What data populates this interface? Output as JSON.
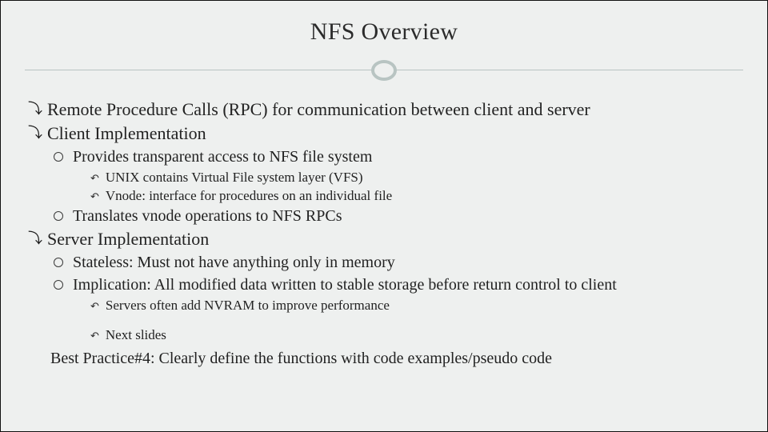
{
  "title": "NFS Overview",
  "bullets": {
    "l1_a": "Remote Procedure Calls (RPC) for communication between client and server",
    "l1_b": "Client Implementation",
    "l2_b1": "Provides transparent access to NFS file system",
    "l3_b1a": "UNIX contains Virtual File system layer (VFS)",
    "l3_b1b": "Vnode: interface for procedures on an individual file",
    "l2_b2": "Translates vnode operations to NFS RPCs",
    "l1_c": "Server Implementation",
    "l2_c1": "Stateless: Must not have anything only in memory",
    "l2_c2": "Implication: All modified data written to stable storage before return control to client",
    "l3_c2a": "Servers often add NVRAM to improve performance",
    "l3_c2b": "Next slides"
  },
  "footnote": "Best Practice#4: Clearly define the functions with code examples/pseudo code",
  "glyphs": {
    "lvl1_bullet": "⤵",
    "lvl3_bullet": "↶"
  },
  "style": {
    "bg": "#eef0ef",
    "accent": "#b8c4c2",
    "title_fontsize": 30,
    "lvl1_fontsize": 22,
    "lvl2_fontsize": 20,
    "lvl3_fontsize": 17,
    "footnote_fontsize": 20
  }
}
